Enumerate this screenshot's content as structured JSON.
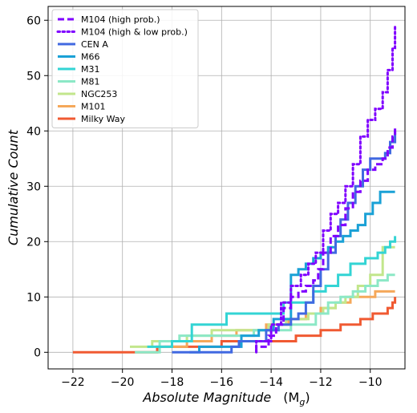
{
  "chart_data": {
    "type": "line",
    "xlabel": "Absolute Magnitude",
    "xlabel_unit": "(M",
    "xlabel_unit_sub": "g",
    "xlabel_unit_close": ")",
    "ylabel": "Cumulative Count",
    "xlim": [
      -23,
      -8.6
    ],
    "ylim": [
      -3,
      62.5
    ],
    "xticks": [
      -22,
      -20,
      -18,
      -16,
      -14,
      -12,
      -10
    ],
    "xtick_labels": [
      "−22",
      "−20",
      "−18",
      "−16",
      "−14",
      "−12",
      "−10"
    ],
    "yticks": [
      0,
      10,
      20,
      30,
      40,
      50,
      60
    ],
    "ytick_labels": [
      "0",
      "10",
      "20",
      "30",
      "40",
      "50",
      "60"
    ],
    "grid": true,
    "legend_position": "top-left",
    "series": [
      {
        "name": "M104 (high prob.)",
        "color": "#7f00ff",
        "dash": "dashed",
        "x": [
          -14.6,
          -14.6,
          -14.1,
          -13.8,
          -13.5,
          -13.2,
          -12.9,
          -12.6,
          -12.3,
          -12.1,
          -11.9,
          -11.6,
          -11.3,
          -11.0,
          -10.7,
          -10.4,
          -10.1,
          -9.8,
          -9.5,
          -9.3,
          -9.1,
          -9.0
        ],
        "y": [
          0,
          1,
          3,
          5,
          8,
          10,
          11,
          12,
          13,
          15,
          18,
          21,
          23,
          26,
          29,
          31,
          33,
          34,
          35,
          37,
          39,
          41
        ]
      },
      {
        "name": "M104 (high & low prob.)",
        "color": "#7f00ff",
        "dash": "dotted",
        "x": [
          -14.6,
          -14.6,
          -14.0,
          -13.6,
          -13.2,
          -12.8,
          -12.5,
          -12.2,
          -11.9,
          -11.6,
          -11.3,
          -11.0,
          -10.7,
          -10.4,
          -10.1,
          -9.8,
          -9.5,
          -9.3,
          -9.1,
          -9.0
        ],
        "y": [
          0,
          2,
          5,
          9,
          12,
          14,
          16,
          18,
          22,
          25,
          27,
          30,
          34,
          39,
          42,
          44,
          47,
          51,
          55,
          59
        ]
      },
      {
        "name": "CEN A",
        "color": "#4169e1",
        "dash": "solid",
        "x": [
          -18.0,
          -15.6,
          -15.3,
          -14.2,
          -13.7,
          -13.2,
          -12.9,
          -12.6,
          -12.3,
          -12.0,
          -11.7,
          -11.4,
          -11.2,
          -10.9,
          -10.6,
          -10.3,
          -10.0,
          -9.7,
          -9.4,
          -9.2,
          -9.0
        ],
        "y": [
          0,
          1,
          2,
          4,
          5,
          6,
          7,
          9,
          12,
          15,
          18,
          21,
          24,
          27,
          30,
          33,
          35,
          35,
          36,
          38,
          40
        ]
      },
      {
        "name": "M66",
        "color": "#1aa1d6",
        "dash": "solid",
        "x": [
          -17.3,
          -16.9,
          -15.2,
          -14.5,
          -13.9,
          -13.2,
          -12.9,
          -12.6,
          -12.3,
          -12.0,
          -11.7,
          -11.4,
          -11.1,
          -10.8,
          -10.5,
          -10.2,
          -9.9,
          -9.6,
          -9.3,
          -9.0
        ],
        "y": [
          0,
          1,
          3,
          4,
          6,
          14,
          15,
          16,
          17,
          18,
          19,
          20,
          21,
          22,
          23,
          25,
          27,
          29,
          29,
          29
        ]
      },
      {
        "name": "M31",
        "color": "#33d4d4",
        "dash": "solid",
        "x": [
          -19.0,
          -18.0,
          -17.2,
          -15.8,
          -13.5,
          -12.3,
          -11.8,
          -11.3,
          -10.8,
          -10.2,
          -9.7,
          -9.4,
          -9.2,
          -9.0
        ],
        "y": [
          1,
          2,
          5,
          7,
          9,
          11,
          12,
          14,
          16,
          17,
          18,
          19,
          20,
          21
        ]
      },
      {
        "name": "M81",
        "color": "#8ce8c6",
        "dash": "solid",
        "x": [
          -19.5,
          -18.5,
          -17.7,
          -14.7,
          -13.2,
          -12.2,
          -11.7,
          -11.2,
          -10.7,
          -10.2,
          -9.7,
          -9.3,
          -9.0
        ],
        "y": [
          0,
          2,
          3,
          4,
          5,
          7,
          9,
          10,
          11,
          12,
          13,
          14,
          14
        ]
      },
      {
        "name": "NGC253",
        "color": "#c2e68c",
        "dash": "solid",
        "x": [
          -19.7,
          -18.8,
          -17.4,
          -16.4,
          -14.1,
          -13.4,
          -12.5,
          -11.9,
          -11.4,
          -11.0,
          -10.5,
          -10.0,
          -9.5,
          -9.0
        ],
        "y": [
          1,
          2,
          3,
          4,
          5,
          6,
          7,
          8,
          9,
          10,
          12,
          14,
          19,
          19
        ]
      },
      {
        "name": "M101",
        "color": "#f5a85a",
        "dash": "solid",
        "x": [
          -18.3,
          -17.4,
          -16.4,
          -15.4,
          -14.2,
          -13.3,
          -12.6,
          -12.0,
          -11.4,
          -10.8,
          -10.3,
          -9.8,
          -9.3,
          -9.0
        ],
        "y": [
          1,
          2,
          3,
          4,
          5,
          6,
          7,
          8,
          9,
          10,
          10,
          11,
          11,
          11
        ]
      },
      {
        "name": "Milky Way",
        "color": "#f05a32",
        "dash": "solid",
        "x": [
          -22.0,
          -20.3,
          -18.6,
          -17.4,
          -16.0,
          -13.0,
          -12.0,
          -11.2,
          -10.4,
          -9.9,
          -9.6,
          -9.3,
          -9.1,
          -9.0
        ],
        "y": [
          0,
          0,
          1,
          1,
          2,
          3,
          4,
          5,
          6,
          7,
          7,
          8,
          9,
          10
        ]
      }
    ]
  }
}
